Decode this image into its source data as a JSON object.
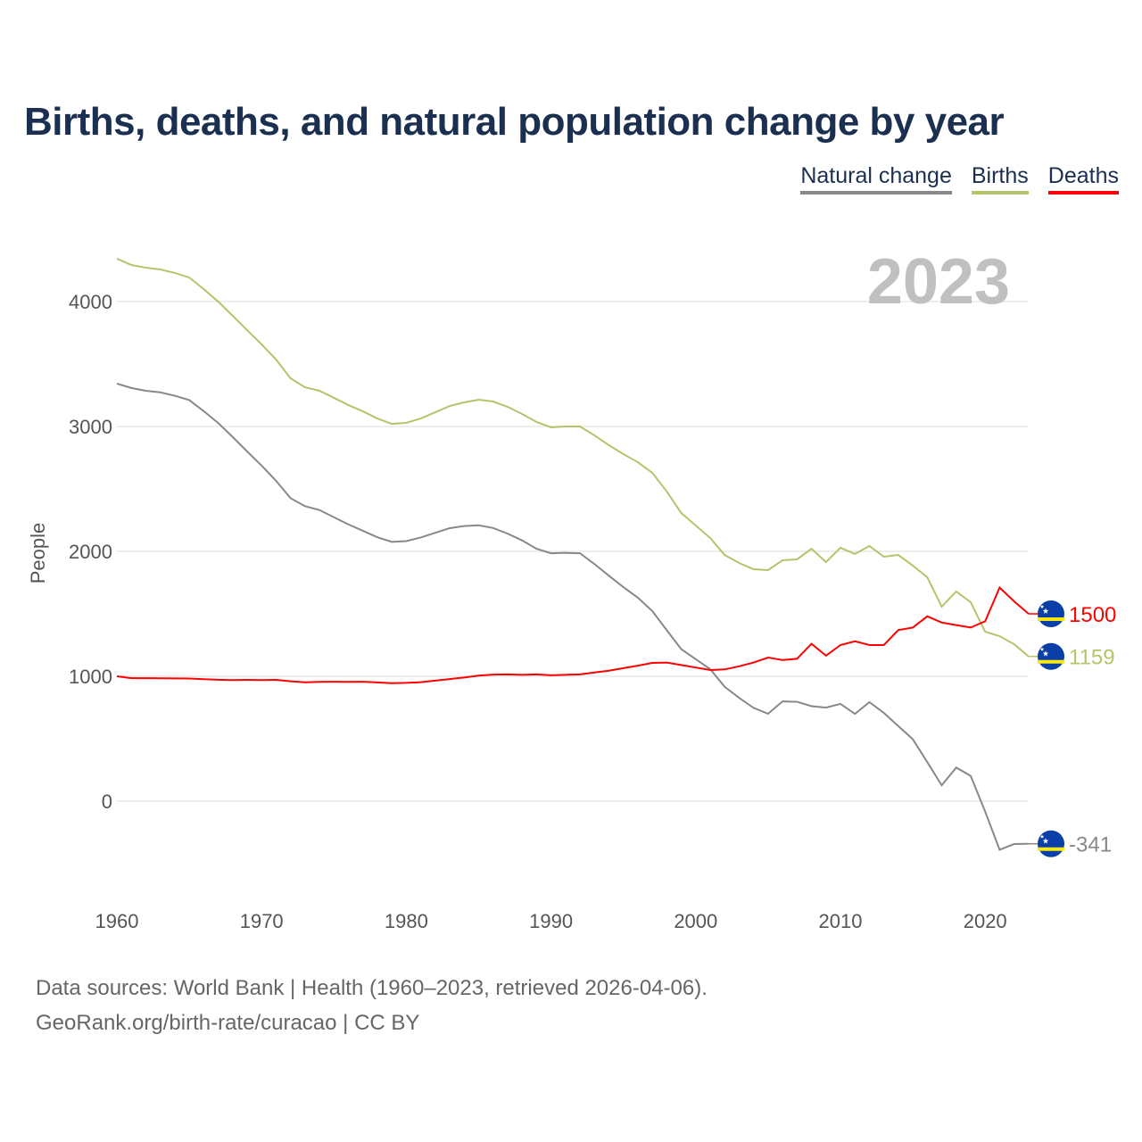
{
  "title": "Births, deaths, and natural population change by year",
  "legend": [
    {
      "label": "Natural change",
      "color": "#888888",
      "text_color": "#1b3050"
    },
    {
      "label": "Births",
      "color": "#b5c46a",
      "text_color": "#1b3050"
    },
    {
      "label": "Deaths",
      "color": "#ff0000",
      "text_color": "#1b3050"
    }
  ],
  "source_line1": "Data sources: World Bank | Health (1960–2023, retrieved 2026-04-06).",
  "source_line2": "GeoRank.org/birth-rate/curacao | CC BY",
  "flag_icon": "curacao-flag-icon",
  "chart_data": {
    "type": "line",
    "title": "Births, deaths, and natural population change by year",
    "year_watermark": "2023",
    "xlabel": "",
    "ylabel": "People",
    "xlim": [
      1960,
      2023
    ],
    "ylim": [
      -600,
      4500
    ],
    "xticks": [
      1960,
      1970,
      1980,
      1990,
      2000,
      2010,
      2020
    ],
    "yticks": [
      0,
      1000,
      2000,
      3000,
      4000
    ],
    "grid": true,
    "legend_position": "top-right",
    "x_start": 1960,
    "series": [
      {
        "name": "Natural change",
        "color": "#888888",
        "end_label": "-341",
        "values": [
          3343,
          3308,
          3286,
          3273,
          3246,
          3211,
          3123,
          3028,
          2916,
          2800,
          2687,
          2565,
          2426,
          2362,
          2331,
          2273,
          2216,
          2165,
          2113,
          2076,
          2082,
          2111,
          2149,
          2186,
          2203,
          2209,
          2187,
          2142,
          2088,
          2021,
          1985,
          1988,
          1985,
          1899,
          1805,
          1714,
          1629,
          1522,
          1369,
          1217,
          1137,
          1057,
          916,
          827,
          747,
          700,
          799,
          796,
          761,
          749,
          779,
          699,
          793,
          707,
          601,
          496,
          313,
          127,
          269,
          203,
          -83,
          -389,
          -343,
          -341
        ]
      },
      {
        "name": "Births",
        "color": "#b5c46a",
        "end_label": "1159",
        "values": [
          4343,
          4293,
          4271,
          4257,
          4229,
          4193,
          4100,
          4000,
          3886,
          3771,
          3657,
          3536,
          3386,
          3314,
          3286,
          3229,
          3171,
          3121,
          3064,
          3021,
          3029,
          3064,
          3114,
          3164,
          3193,
          3214,
          3200,
          3157,
          3100,
          3036,
          2993,
          3000,
          3000,
          2929,
          2850,
          2779,
          2714,
          2629,
          2479,
          2307,
          2207,
          2107,
          1971,
          1907,
          1857,
          1850,
          1929,
          1936,
          2021,
          1914,
          2029,
          1979,
          2043,
          1957,
          1971,
          1886,
          1793,
          1557,
          1679,
          1593,
          1357,
          1321,
          1257,
          1159
        ]
      },
      {
        "name": "Deaths",
        "color": "#ff0000",
        "end_label": "1500",
        "values": [
          1000,
          985,
          985,
          984,
          983,
          982,
          977,
          972,
          970,
          971,
          970,
          971,
          960,
          952,
          955,
          956,
          955,
          956,
          951,
          945,
          947,
          953,
          965,
          978,
          990,
          1005,
          1013,
          1015,
          1012,
          1015,
          1008,
          1012,
          1015,
          1030,
          1045,
          1065,
          1085,
          1107,
          1110,
          1090,
          1070,
          1050,
          1055,
          1080,
          1110,
          1150,
          1130,
          1140,
          1260,
          1165,
          1250,
          1280,
          1250,
          1250,
          1370,
          1390,
          1480,
          1430,
          1410,
          1390,
          1440,
          1710,
          1600,
          1500
        ]
      }
    ]
  }
}
